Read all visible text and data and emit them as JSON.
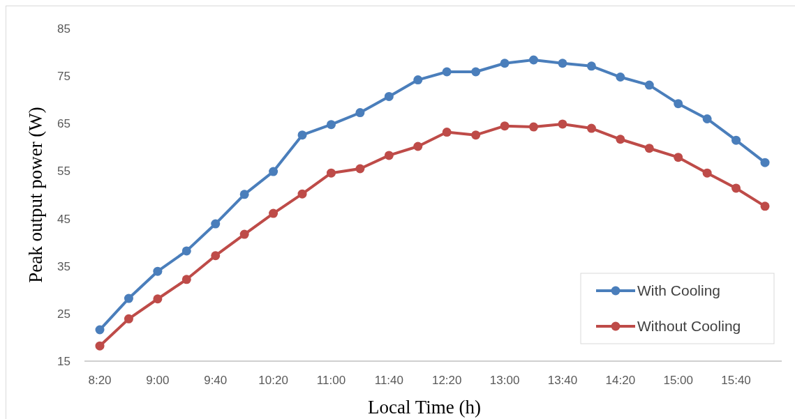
{
  "chart_data": {
    "type": "line",
    "xlabel": "Local Time (h)",
    "ylabel": "Peak output power (W)",
    "categories": [
      "8:20",
      null,
      "9:00",
      null,
      "9:40",
      null,
      "10:20",
      null,
      "11:00",
      null,
      "11:40",
      null,
      "12:20",
      null,
      "13:00",
      null,
      "13:40",
      null,
      "14:20",
      null,
      "15:00",
      null,
      "15:40",
      null
    ],
    "series": [
      {
        "name": "With Cooling",
        "color": "#4a7ebb",
        "values": [
          21.6,
          28.2,
          33.9,
          38.2,
          43.9,
          50.1,
          54.9,
          62.6,
          64.8,
          67.3,
          70.7,
          74.2,
          75.9,
          75.9,
          77.7,
          78.4,
          77.7,
          77.1,
          74.8,
          73.1,
          69.2,
          66.0,
          61.5,
          56.8
        ]
      },
      {
        "name": "Without Cooling",
        "color": "#be4b48",
        "values": [
          18.2,
          23.9,
          28.1,
          32.2,
          37.2,
          41.7,
          46.1,
          50.2,
          54.6,
          55.5,
          58.3,
          60.2,
          63.2,
          62.6,
          64.5,
          64.3,
          64.9,
          64.0,
          61.7,
          59.8,
          57.9,
          54.6,
          51.4,
          47.6
        ]
      }
    ],
    "ylim": [
      15,
      85
    ],
    "yticks": [
      15,
      25,
      35,
      45,
      55,
      65,
      75,
      85
    ],
    "grid": false,
    "legend": "bottom right",
    "marker": "circle",
    "line_style": "solid"
  }
}
